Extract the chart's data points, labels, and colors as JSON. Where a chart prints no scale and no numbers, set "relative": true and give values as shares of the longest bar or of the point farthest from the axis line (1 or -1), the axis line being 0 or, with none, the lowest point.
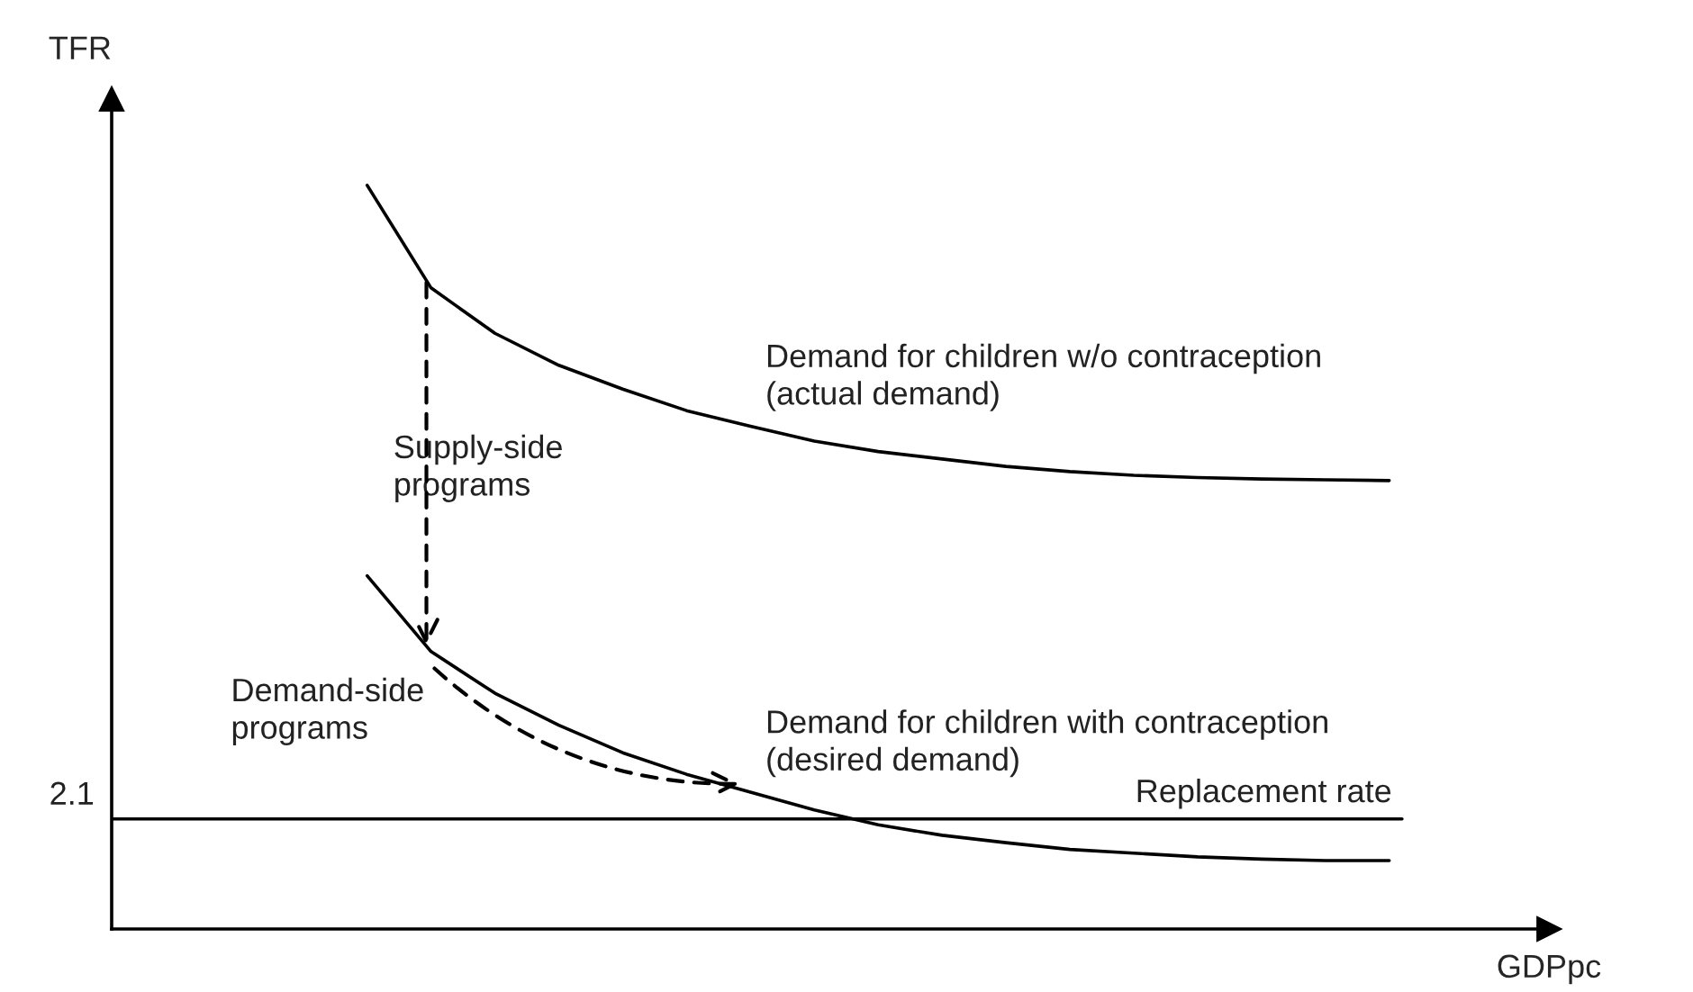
{
  "chart_data": {
    "type": "line",
    "relative": true,
    "xlabel": "GDPpc",
    "ylabel": "TFR",
    "legend": false,
    "tick_labels": false,
    "categories": [
      null,
      null,
      null,
      null,
      null,
      null,
      null,
      null,
      null,
      null,
      null,
      null,
      null,
      null,
      null,
      null,
      null,
      null,
      null,
      null,
      null,
      null,
      null
    ],
    "series": [
      {
        "name": "Demand for children w/o contraception\n(actual demand)",
        "color": "#000000",
        "values": [
          null,
          null,
          null,
          null,
          1.0,
          0.862,
          0.801,
          0.758,
          0.726,
          0.697,
          0.676,
          0.656,
          0.642,
          0.632,
          0.622,
          0.615,
          0.61,
          0.607,
          0.605,
          0.604,
          0.603,
          null,
          null
        ]
      },
      {
        "name": "Demand for children with contraception\n(desired demand)",
        "color": "#000000",
        "values": [
          null,
          null,
          null,
          null,
          0.475,
          0.373,
          0.317,
          0.274,
          0.237,
          0.208,
          0.184,
          0.16,
          0.14,
          0.126,
          0.116,
          0.107,
          0.102,
          0.097,
          0.094,
          0.092,
          0.092,
          null,
          null
        ]
      }
    ],
    "ref_lines": [
      {
        "axis": "y",
        "value": 0.148,
        "label": "Replacement rate",
        "color": "#000000"
      }
    ],
    "annotations": [
      "2.1",
      "Supply-side\nprograms",
      "Demand-side\nprograms"
    ]
  }
}
